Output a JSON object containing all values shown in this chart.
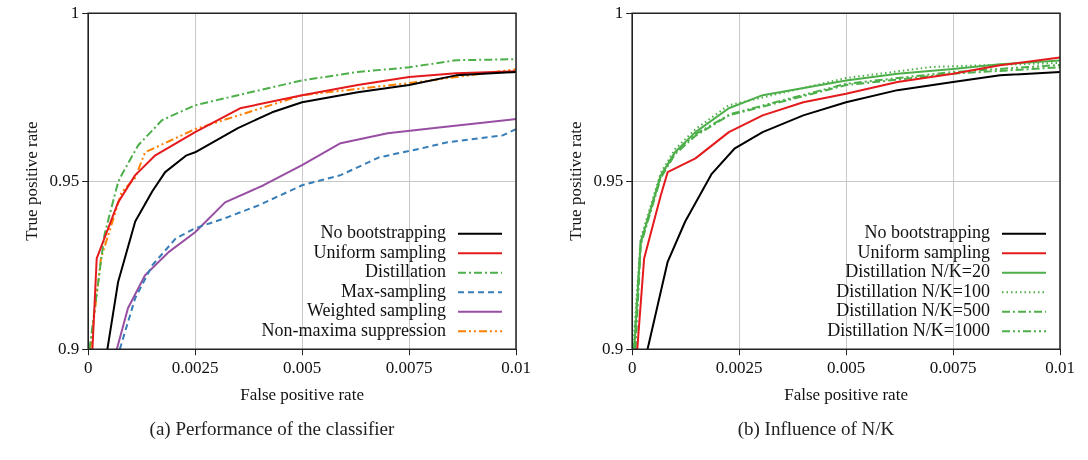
{
  "chart_data": [
    {
      "type": "line",
      "title": "(a) Performance of the classifier",
      "xlabel": "False positive rate",
      "ylabel": "True positive rate",
      "xlim": [
        0,
        0.01
      ],
      "ylim": [
        0.9,
        1
      ],
      "xticks": [
        0,
        0.0025,
        0.005,
        0.0075,
        0.01
      ],
      "yticks": [
        0.9,
        0.95,
        1
      ],
      "grid": true,
      "legend": "bottom right",
      "series": [
        {
          "name": "No bootstrapping",
          "color": "#000000",
          "line_style": "solid",
          "x": [
            0.00045,
            0.0007,
            0.0011,
            0.0015,
            0.0018,
            0.0023,
            0.0025,
            0.0035,
            0.0043,
            0.005,
            0.0063,
            0.0075,
            0.0086,
            0.01
          ],
          "values": [
            0.9,
            0.92,
            0.938,
            0.947,
            0.9527,
            0.9577,
            0.9586,
            0.9658,
            0.9705,
            0.9735,
            0.9765,
            0.9786,
            0.9815,
            0.9825
          ]
        },
        {
          "name": "Uniform sampling",
          "color": "#e41a1c",
          "line_style": "solid",
          "x": [
            0.0001,
            0.0002,
            0.0007,
            0.0011,
            0.00157,
            0.0025,
            0.00355,
            0.005,
            0.0063,
            0.0075,
            0.0086,
            0.01
          ],
          "values": [
            0.9,
            0.927,
            0.9437,
            0.9518,
            0.9577,
            0.9646,
            0.9717,
            0.9756,
            0.9786,
            0.981,
            0.9821,
            0.9827
          ]
        },
        {
          "name": "Distillation",
          "color": "#4daf4a",
          "line_style": "dashdot",
          "x": [
            3e-05,
            0.00038,
            0.0007,
            0.00078,
            0.00117,
            0.00173,
            0.0025,
            0.0035,
            0.005,
            0.0063,
            0.0075,
            0.0086,
            0.01
          ],
          "values": [
            0.9,
            0.934,
            0.9497,
            0.9518,
            0.9607,
            0.9682,
            0.9726,
            0.9756,
            0.98,
            0.9825,
            0.9839,
            0.986,
            0.9863
          ]
        },
        {
          "name": "Max-sampling",
          "color": "#377eb8",
          "line_style": "dashed",
          "x": [
            0.00074,
            0.0011,
            0.0015,
            0.00205,
            0.0025,
            0.0032,
            0.004,
            0.005,
            0.0059,
            0.0068,
            0.0078,
            0.0084,
            0.0097,
            0.01
          ],
          "values": [
            0.9,
            0.9152,
            0.925,
            0.933,
            0.936,
            0.939,
            0.9429,
            0.9488,
            0.9518,
            0.9571,
            0.9598,
            0.9616,
            0.9637,
            0.9655
          ]
        },
        {
          "name": "Weighted sampling",
          "color": "#984ea3",
          "line_style": "solid",
          "x": [
            0.00067,
            0.00093,
            0.00133,
            0.00188,
            0.0025,
            0.0032,
            0.0041,
            0.005,
            0.0059,
            0.007,
            0.0082,
            0.01
          ],
          "values": [
            0.9,
            0.9122,
            0.922,
            0.9289,
            0.9348,
            0.9437,
            0.9488,
            0.9548,
            0.9613,
            0.9643,
            0.966,
            0.9685
          ]
        },
        {
          "name": "Non-maxima suppression",
          "color": "#ff7f00",
          "line_style": "dashdotdot",
          "x": [
            5e-05,
            0.0003,
            0.00078,
            0.0011,
            0.00133,
            0.0025,
            0.005,
            0.0075,
            0.0086,
            0.01
          ],
          "values": [
            0.9,
            0.927,
            0.9467,
            0.951,
            0.9586,
            0.9655,
            0.9756,
            0.9792,
            0.981,
            0.9833
          ]
        }
      ]
    },
    {
      "type": "line",
      "title": "(b) Influence of N/K",
      "xlabel": "False positive rate",
      "ylabel": "True positive rate",
      "xlim": [
        0,
        0.01
      ],
      "ylim": [
        0.9,
        1
      ],
      "xticks": [
        0,
        0.0025,
        0.005,
        0.0075,
        0.01
      ],
      "yticks": [
        0.9,
        0.95,
        1
      ],
      "grid": true,
      "legend": "bottom right",
      "series": [
        {
          "name": "No bootstrapping",
          "color": "#000000",
          "line_style": "solid",
          "x": [
            0.00036,
            0.00083,
            0.00124,
            0.00186,
            0.0024,
            0.00305,
            0.004,
            0.005,
            0.0062,
            0.0075,
            0.0086,
            0.01
          ],
          "values": [
            0.9,
            0.926,
            0.938,
            0.9522,
            0.9598,
            0.9646,
            0.9696,
            0.9735,
            0.9771,
            0.9795,
            0.9815,
            0.9825
          ]
        },
        {
          "name": "Uniform sampling",
          "color": "#e41a1c",
          "line_style": "solid",
          "x": [
            0.00012,
            0.00028,
            0.00067,
            0.00083,
            0.00148,
            0.00226,
            0.00305,
            0.004,
            0.005,
            0.0062,
            0.0075,
            0.0086,
            0.01
          ],
          "values": [
            0.9,
            0.927,
            0.9458,
            0.9527,
            0.9568,
            0.9646,
            0.9696,
            0.9735,
            0.976,
            0.9795,
            0.982,
            0.9845,
            0.9868
          ]
        },
        {
          "name": "Distillation N/K=20",
          "color": "#4daf4a",
          "line_style": "solid",
          "x": [
            5e-05,
            0.0002,
            0.00067,
            0.001,
            0.00148,
            0.00226,
            0.00305,
            0.005,
            0.0062,
            0.0075,
            0.0086,
            0.01
          ],
          "values": [
            0.9,
            0.9318,
            0.9518,
            0.9586,
            0.9646,
            0.9717,
            0.9756,
            0.98,
            0.982,
            0.9834,
            0.9848,
            0.9859
          ]
        },
        {
          "name": "Distillation N/K=100",
          "color": "#4daf4a",
          "line_style": "dotted",
          "x": [
            2e-05,
            0.0002,
            0.00067,
            0.001,
            0.00148,
            0.00226,
            0.005,
            0.007,
            0.01
          ],
          "values": [
            0.9,
            0.933,
            0.9525,
            0.9595,
            0.9655,
            0.9726,
            0.9807,
            0.984,
            0.9852
          ]
        },
        {
          "name": "Distillation N/K=500",
          "color": "#4daf4a",
          "line_style": "dashdot",
          "x": [
            8e-05,
            0.0002,
            0.00067,
            0.001,
            0.00148,
            0.00226,
            0.005,
            0.0075,
            0.01
          ],
          "values": [
            0.9,
            0.931,
            0.951,
            0.958,
            0.9635,
            0.9696,
            0.9786,
            0.982,
            0.9839
          ]
        },
        {
          "name": "Distillation N/K=1000",
          "color": "#4daf4a",
          "line_style": "dashdotdot",
          "x": [
            4e-05,
            0.0002,
            0.00067,
            0.001,
            0.00148,
            0.0023,
            0.005,
            0.0075,
            0.01
          ],
          "values": [
            0.9,
            0.932,
            0.9515,
            0.9585,
            0.964,
            0.97,
            0.979,
            0.9825,
            0.9846
          ]
        }
      ]
    }
  ]
}
